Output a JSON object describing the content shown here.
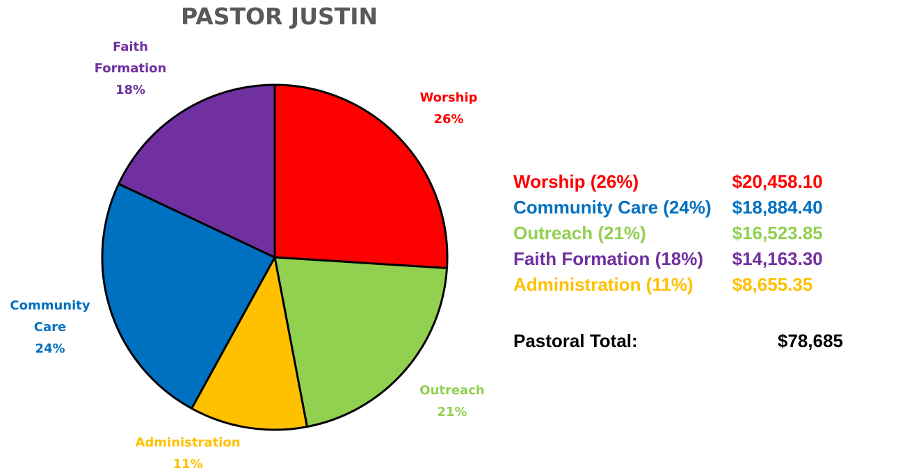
{
  "colors": {
    "worship": "#ff0000",
    "community_care": "#0070c0",
    "outreach": "#92d050",
    "faith_formation": "#7030a0",
    "administration": "#ffc000"
  },
  "chart_data": {
    "type": "pie",
    "title": "PASTOR JUSTIN",
    "slices": [
      {
        "key": "worship",
        "label_lines": [
          "Worship",
          "26%"
        ],
        "percent": 26,
        "value": 20458.1,
        "color": "#ff0000"
      },
      {
        "key": "outreach",
        "label_lines": [
          "Outreach",
          "21%"
        ],
        "percent": 21,
        "value": 16523.85,
        "color": "#92d050"
      },
      {
        "key": "administration",
        "label_lines": [
          "Administration",
          "11%"
        ],
        "percent": 11,
        "value": 8655.35,
        "color": "#ffc000"
      },
      {
        "key": "community_care",
        "label_lines": [
          "Community",
          "Care",
          "24%"
        ],
        "percent": 24,
        "value": 18884.4,
        "color": "#0070c0"
      },
      {
        "key": "faith_formation",
        "label_lines": [
          "Faith",
          "Formation",
          "18%"
        ],
        "percent": 18,
        "value": 14163.3,
        "color": "#7030a0"
      }
    ],
    "legend": [
      {
        "label": "Worship (26%)",
        "amount": "$20,458.10",
        "color": "#ff0000"
      },
      {
        "label": "Community Care (24%)",
        "amount": "$18,884.40",
        "color": "#0070c0"
      },
      {
        "label": "Outreach (21%)",
        "amount": "$16,523.85",
        "color": "#92d050"
      },
      {
        "label": "Faith Formation (18%)",
        "amount": "$14,163.30",
        "color": "#7030a0"
      },
      {
        "label": "Administration (11%)",
        "amount": "$8,655.35",
        "color": "#ffc000"
      }
    ],
    "total": {
      "label": "Pastoral Total:",
      "amount": "$78,685"
    }
  }
}
